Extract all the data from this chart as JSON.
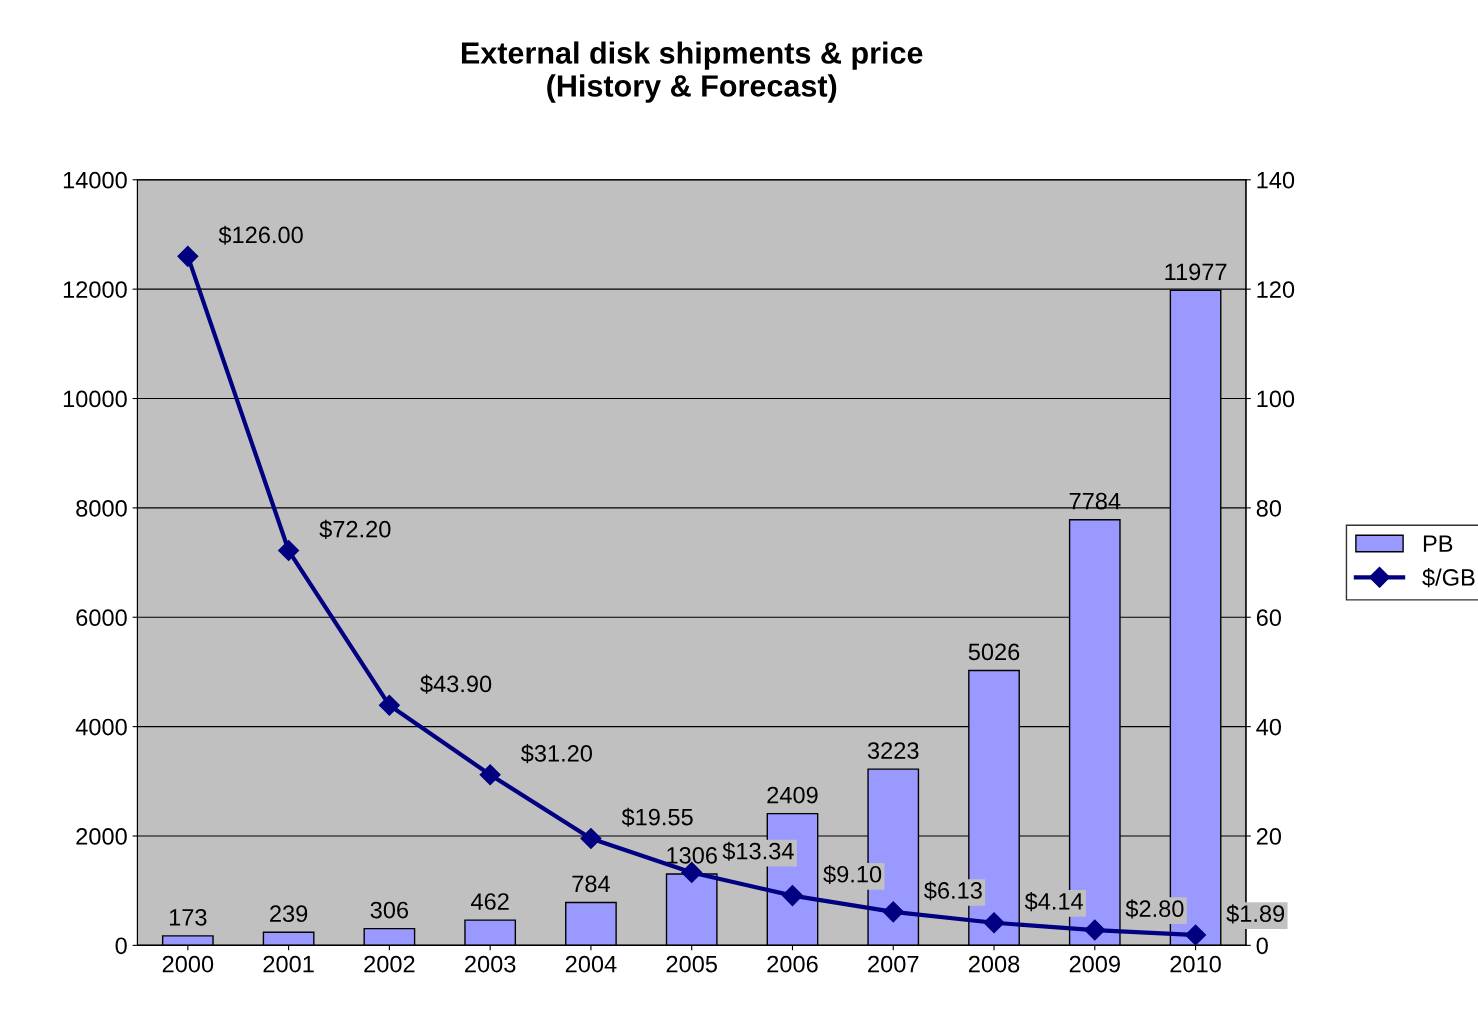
{
  "chart_data": {
    "type": "bar",
    "title": "External disk shipments & price\n(History & Forecast)",
    "categories": [
      "2000",
      "2001",
      "2002",
      "2003",
      "2004",
      "2005",
      "2006",
      "2007",
      "2008",
      "2009",
      "2010"
    ],
    "series": [
      {
        "name": "PB",
        "color": "#9999ff",
        "values": [
          173,
          239,
          306,
          462,
          784,
          1306,
          2409,
          3223,
          5026,
          7784,
          11977
        ],
        "data_labels": true
      },
      {
        "name": "$/GB",
        "type": "line",
        "axis": "y2",
        "color": "#000080",
        "marker": "diamond",
        "line_style": "solid",
        "values": [
          126.0,
          72.2,
          43.9,
          31.2,
          19.55,
          13.34,
          9.1,
          6.13,
          4.14,
          2.8,
          1.89
        ],
        "value_labels": [
          "$126.00",
          "$72.20",
          "$43.90",
          "$31.20",
          "$19.55",
          "$13.34",
          "$9.10",
          "$6.13",
          "$4.14",
          "$2.80",
          "$1.89"
        ]
      }
    ],
    "ylim": [
      0,
      14000
    ],
    "yticks": [
      0,
      2000,
      4000,
      6000,
      8000,
      10000,
      12000,
      14000
    ],
    "y2lim": [
      0,
      140
    ],
    "y2ticks": [
      0,
      20,
      40,
      60,
      80,
      100,
      120,
      140
    ],
    "grid": "y",
    "legend": "right"
  }
}
